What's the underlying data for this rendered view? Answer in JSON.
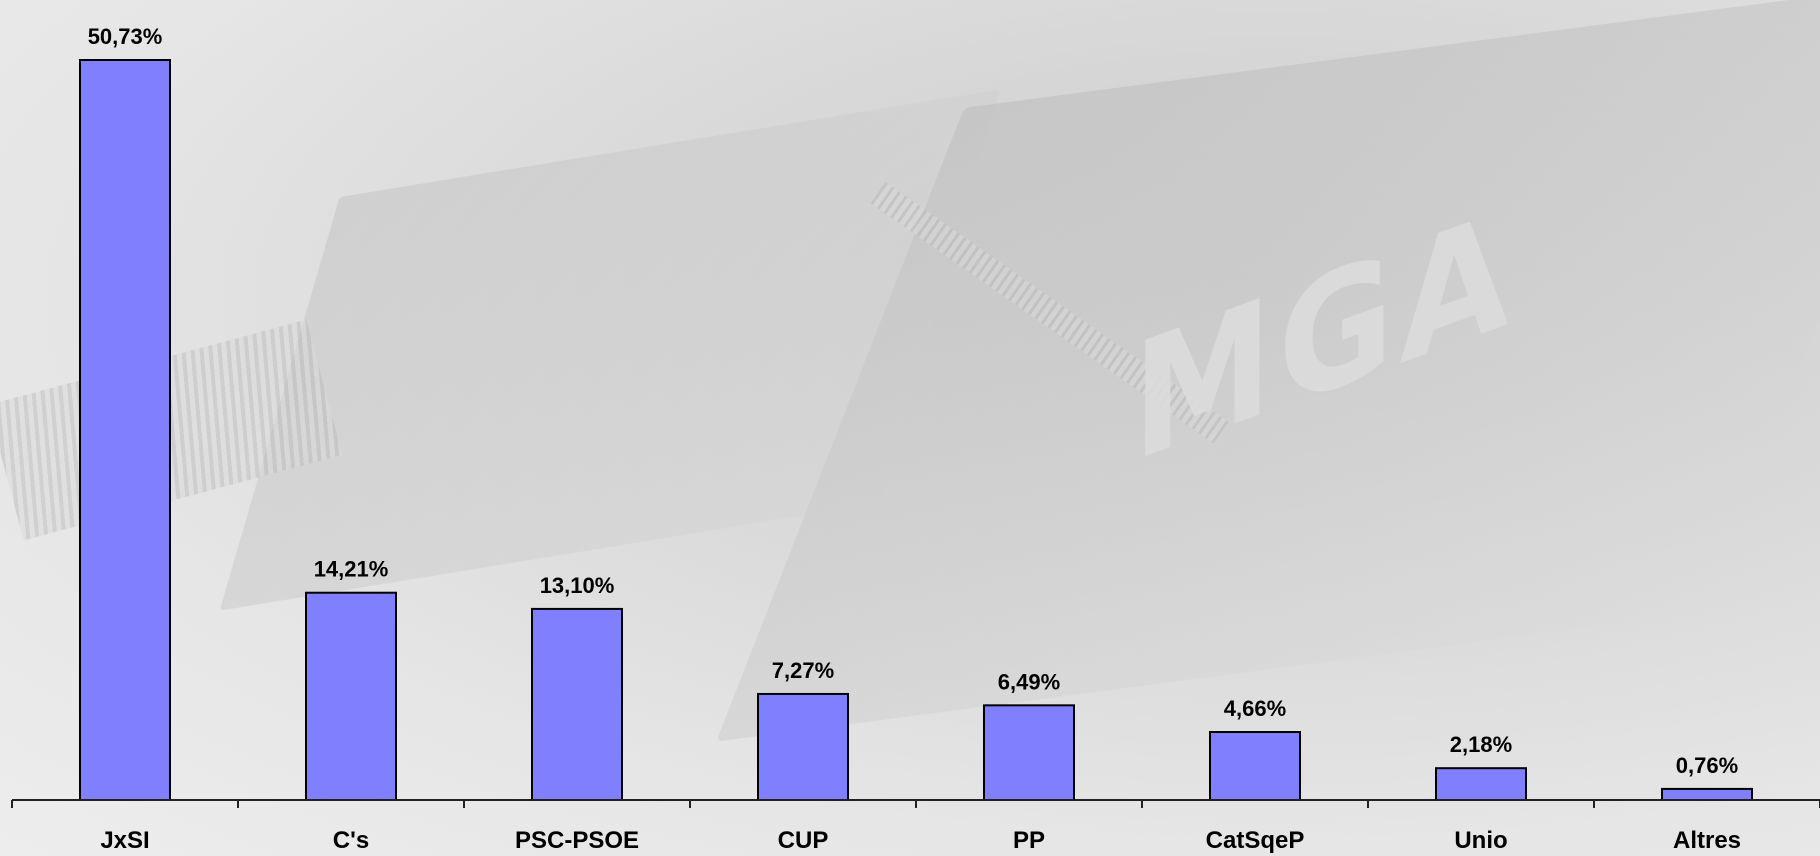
{
  "background": {
    "logo_text": "MGA"
  },
  "chart_data": {
    "type": "bar",
    "categories": [
      "JxSI",
      "C's",
      "PSC-PSOE",
      "CUP",
      "PP",
      "CatSqeP",
      "Unio",
      "Altres"
    ],
    "values": [
      50.73,
      14.21,
      13.1,
      7.27,
      6.49,
      4.66,
      2.18,
      0.76
    ],
    "value_labels": [
      "50,73%",
      "14,21%",
      "13,10%",
      "7,27%",
      "6,49%",
      "4,66%",
      "2,18%",
      "0,76%"
    ],
    "title": "",
    "xlabel": "",
    "ylabel": "",
    "ylim": [
      0,
      50.73
    ],
    "grid": false,
    "bar_color": "#8080ff"
  }
}
